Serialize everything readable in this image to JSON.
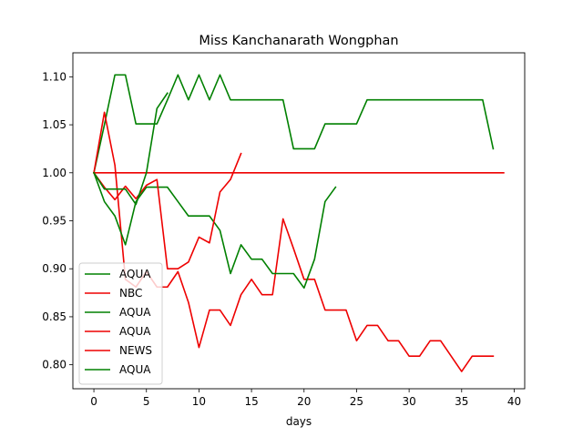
{
  "chart_data": {
    "type": "line",
    "title": "Miss Kanchanarath Wongphan",
    "xlabel": "days",
    "ylabel": "",
    "xlim": [
      -2,
      41
    ],
    "ylim": [
      0.775,
      1.125
    ],
    "xticks": [
      0,
      5,
      10,
      15,
      20,
      25,
      30,
      35,
      40
    ],
    "yticks": [
      0.8,
      0.85,
      0.9,
      0.95,
      1.0,
      1.05,
      1.1
    ],
    "ytick_labels": [
      "0.80",
      "0.85",
      "0.90",
      "0.95",
      "1.00",
      "1.05",
      "1.10"
    ],
    "grid": false,
    "legend_position": "lower-left",
    "colors": {
      "green": "#008000",
      "red": "#ee0000"
    },
    "series": [
      {
        "name": "AQUA",
        "color": "green",
        "x": [
          0,
          1,
          2,
          3,
          4,
          5,
          6,
          7,
          8,
          9,
          10,
          11,
          12,
          13,
          14,
          15,
          16,
          17,
          18,
          19,
          20,
          21,
          22,
          23,
          24,
          25,
          26,
          27,
          28,
          29,
          30,
          31,
          32,
          33,
          34,
          35,
          36,
          37,
          38
        ],
        "y": [
          1.0,
          1.05,
          1.102,
          1.102,
          1.051,
          1.051,
          1.051,
          1.076,
          1.102,
          1.076,
          1.102,
          1.076,
          1.102,
          1.076,
          1.076,
          1.076,
          1.076,
          1.076,
          1.076,
          1.025,
          1.025,
          1.025,
          1.051,
          1.051,
          1.051,
          1.051,
          1.076,
          1.076,
          1.076,
          1.076,
          1.076,
          1.076,
          1.076,
          1.076,
          1.076,
          1.076,
          1.076,
          1.076,
          1.025
        ]
      },
      {
        "name": "NBC",
        "color": "red",
        "x": [
          0,
          1,
          2,
          3,
          4,
          5,
          6,
          7,
          8,
          9,
          10,
          11,
          12,
          13,
          14,
          15,
          16,
          17,
          18,
          19,
          20,
          21,
          22,
          23,
          24,
          25,
          26,
          27,
          28,
          29,
          30,
          31,
          32,
          33,
          34,
          35,
          36,
          37,
          38
        ],
        "y": [
          1.0,
          1.063,
          1.008,
          0.889,
          0.881,
          0.897,
          0.881,
          0.881,
          0.897,
          0.865,
          0.818,
          0.857,
          0.857,
          0.841,
          0.873,
          0.889,
          0.873,
          0.873,
          0.952,
          0.921,
          0.889,
          0.889,
          0.857,
          0.857,
          0.857,
          0.825,
          0.841,
          0.841,
          0.825,
          0.825,
          0.809,
          0.809,
          0.825,
          0.825,
          0.809,
          0.793,
          0.809,
          0.809,
          0.809
        ]
      },
      {
        "name": "AQUA",
        "color": "green",
        "x": [
          0,
          1,
          2,
          3,
          4,
          5,
          6,
          7,
          8,
          9,
          10,
          11,
          12,
          13,
          14,
          15,
          16,
          17,
          18,
          19,
          20,
          21,
          22,
          23
        ],
        "y": [
          1.0,
          0.97,
          0.955,
          0.925,
          0.97,
          0.985,
          0.985,
          0.985,
          0.97,
          0.955,
          0.955,
          0.955,
          0.94,
          0.895,
          0.925,
          0.91,
          0.91,
          0.895,
          0.895,
          0.895,
          0.88,
          0.91,
          0.97,
          0.985
        ]
      },
      {
        "name": "AQUA",
        "color": "red",
        "x": [
          0,
          1,
          2,
          3,
          4,
          5,
          6,
          7,
          8,
          9,
          10,
          11,
          12,
          13,
          14
        ],
        "y": [
          1.0,
          0.985,
          0.972,
          0.986,
          0.973,
          0.987,
          0.993,
          0.9,
          0.9,
          0.907,
          0.933,
          0.927,
          0.98,
          0.993,
          1.02
        ]
      },
      {
        "name": "NEWS",
        "color": "red",
        "x": [
          0,
          39
        ],
        "y": [
          1.0,
          1.0
        ]
      },
      {
        "name": "AQUA",
        "color": "green",
        "x": [
          0,
          1,
          2,
          3,
          4,
          5,
          6,
          7
        ],
        "y": [
          1.0,
          0.983,
          0.983,
          0.983,
          0.967,
          1.0,
          1.067,
          1.083
        ]
      }
    ]
  }
}
